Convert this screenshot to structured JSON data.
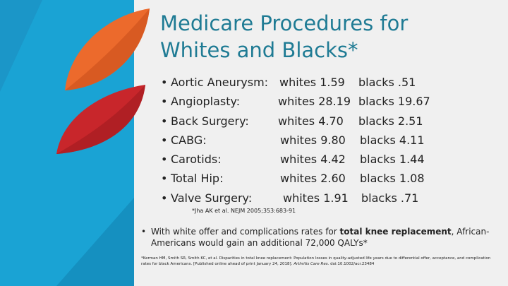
{
  "slide": {
    "title_line1": "Medicare Procedures for",
    "title_line2": "Whites and Blacks*",
    "bullet_glyph": "•",
    "procedures": [
      {
        "label": "Aortic Aneurysm:",
        "whites": "whites 1.59",
        "blacks": "blacks .51"
      },
      {
        "label": "Angioplasty:",
        "whites": "whites 28.19",
        "blacks": "blacks 19.67"
      },
      {
        "label": "Back Surgery:",
        "whites": "whites  4.70",
        "blacks": "blacks  2.51"
      },
      {
        "label": "CABG:",
        "whites": "whites  9.80",
        "blacks": "blacks  4.11"
      },
      {
        "label": "Carotids:",
        "whites": "whites 4.42",
        "blacks": "blacks 1.44"
      },
      {
        "label": "Total Hip:",
        "whites": "whites 2.60",
        "blacks": "blacks  1.08"
      },
      {
        "label": "Valve Surgery:",
        "whites": "whites 1.91",
        "blacks": "blacks  .71"
      }
    ],
    "citation1": "*Jha AK et al. NEJM 2005;353:683-91",
    "note_before": "With white offer and complications rates for ",
    "note_bold": "total knee replacement",
    "note_after": ", African-Americans would gain an additional 72,000 QALYs*",
    "citation2_plain": "*Kerman HM, Smith SR, Smith KC, et al. Disparities in total knee replacement: Population losses in quality-adjusted life years due to differential offer, acceptance, and complication rates for black Americans. [Published online ahead of print January 24, 2018]. ",
    "citation2_journal": "Arthritis Care Res.",
    "citation2_doi": " doi:10.1002/acr.23484"
  },
  "colors": {
    "title": "#1f7b94",
    "text": "#222222",
    "background": "#f0f0f0",
    "panel_blue": "#1aa3d4",
    "leaf_orange": "#ec6a2c",
    "leaf_red": "#c8262b"
  }
}
